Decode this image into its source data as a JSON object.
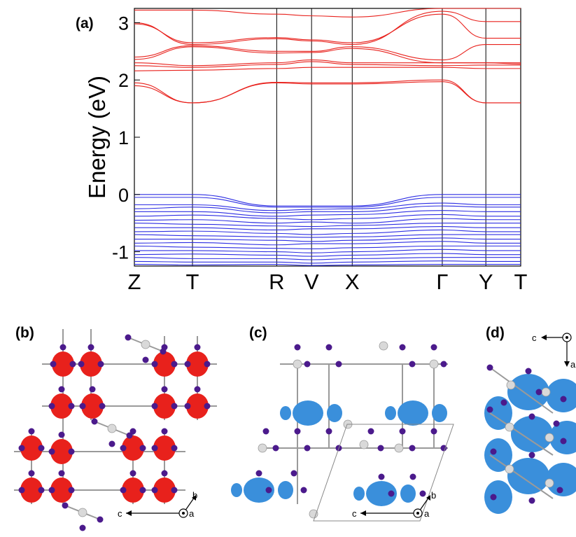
{
  "figure": {
    "panel_labels": [
      "(a)",
      "(b)",
      "(c)",
      "(d)"
    ]
  },
  "chart_data": {
    "type": "line",
    "title": "",
    "ylabel": "Energy (eV)",
    "xlabel": "",
    "ylim": [
      -1.25,
      3.25
    ],
    "yticks": [
      "3",
      "2",
      "1",
      "0",
      "-1"
    ],
    "k_labels": [
      "Z",
      "T",
      "R",
      "V",
      "X",
      "Γ",
      "Y",
      "T"
    ],
    "k_positions": [
      0.0,
      1.0,
      2.45,
      3.05,
      3.75,
      5.3,
      6.05,
      6.65
    ],
    "series": [
      {
        "values": [
          3.22,
          3.22,
          3.15,
          3.12,
          3.1,
          3.25,
          3.25,
          3.25
        ],
        "color": "#e8211c"
      },
      {
        "values": [
          3.0,
          2.62,
          2.72,
          2.68,
          2.62,
          3.2,
          3.02,
          3.02
        ],
        "color": "#e8211c"
      },
      {
        "values": [
          2.98,
          2.65,
          2.74,
          2.7,
          2.65,
          3.15,
          2.73,
          2.73
        ],
        "color": "#e8211c"
      },
      {
        "values": [
          2.4,
          2.6,
          2.5,
          2.5,
          2.58,
          2.35,
          2.62,
          2.62
        ],
        "color": "#e8211c"
      },
      {
        "values": [
          2.36,
          2.58,
          2.47,
          2.48,
          2.55,
          2.3,
          2.3,
          2.3
        ],
        "color": "#e8211c"
      },
      {
        "values": [
          2.3,
          2.25,
          2.3,
          2.35,
          2.3,
          2.3,
          2.3,
          2.28
        ],
        "color": "#e8211c"
      },
      {
        "values": [
          2.25,
          2.22,
          2.27,
          2.32,
          2.27,
          2.25,
          2.26,
          2.26
        ],
        "color": "#e8211c"
      },
      {
        "values": [
          2.16,
          2.17,
          2.2,
          2.22,
          2.22,
          2.22,
          2.2,
          2.2
        ],
        "color": "#e8211c"
      },
      {
        "values": [
          1.95,
          1.6,
          1.96,
          1.95,
          1.95,
          2.0,
          1.6,
          1.6
        ],
        "color": "#e8211c"
      },
      {
        "values": [
          1.9,
          1.6,
          1.95,
          1.93,
          1.93,
          1.97,
          1.6,
          1.6
        ],
        "color": "#e8211c"
      },
      {
        "values": [
          0.0,
          0.0,
          -0.2,
          -0.2,
          -0.2,
          0.0,
          0.0,
          0.0
        ],
        "color": "#2d2ee3"
      },
      {
        "values": [
          -0.05,
          -0.05,
          -0.22,
          -0.22,
          -0.22,
          -0.05,
          -0.05,
          -0.05
        ],
        "color": "#2d2ee3"
      },
      {
        "values": [
          -0.18,
          -0.18,
          -0.28,
          -0.26,
          -0.25,
          -0.15,
          -0.18,
          -0.18
        ],
        "color": "#2d2ee3"
      },
      {
        "values": [
          -0.25,
          -0.22,
          -0.32,
          -0.3,
          -0.3,
          -0.2,
          -0.22,
          -0.22
        ],
        "color": "#2d2ee3"
      },
      {
        "values": [
          -0.3,
          -0.3,
          -0.38,
          -0.36,
          -0.35,
          -0.28,
          -0.3,
          -0.3
        ],
        "color": "#2d2ee3"
      },
      {
        "values": [
          -0.38,
          -0.36,
          -0.42,
          -0.44,
          -0.42,
          -0.35,
          -0.38,
          -0.38
        ],
        "color": "#2d2ee3"
      },
      {
        "values": [
          -0.45,
          -0.44,
          -0.5,
          -0.48,
          -0.5,
          -0.42,
          -0.44,
          -0.44
        ],
        "color": "#2d2ee3"
      },
      {
        "values": [
          -0.5,
          -0.52,
          -0.55,
          -0.56,
          -0.54,
          -0.5,
          -0.5,
          -0.5
        ],
        "color": "#2d2ee3"
      },
      {
        "values": [
          -0.58,
          -0.58,
          -0.62,
          -0.6,
          -0.6,
          -0.56,
          -0.58,
          -0.58
        ],
        "color": "#2d2ee3"
      },
      {
        "values": [
          -0.65,
          -0.64,
          -0.68,
          -0.7,
          -0.68,
          -0.62,
          -0.65,
          -0.65
        ],
        "color": "#2d2ee3"
      },
      {
        "values": [
          -0.7,
          -0.72,
          -0.74,
          -0.75,
          -0.74,
          -0.7,
          -0.7,
          -0.7
        ],
        "color": "#2d2ee3"
      },
      {
        "values": [
          -0.78,
          -0.78,
          -0.8,
          -0.82,
          -0.8,
          -0.76,
          -0.78,
          -0.78
        ],
        "color": "#2d2ee3"
      },
      {
        "values": [
          -0.85,
          -0.84,
          -0.88,
          -0.86,
          -0.86,
          -0.82,
          -0.85,
          -0.85
        ],
        "color": "#2d2ee3"
      },
      {
        "values": [
          -0.9,
          -0.92,
          -0.94,
          -0.95,
          -0.93,
          -0.9,
          -0.9,
          -0.9
        ],
        "color": "#2d2ee3"
      },
      {
        "values": [
          -0.98,
          -0.98,
          -1.0,
          -1.02,
          -1.0,
          -0.96,
          -0.98,
          -0.98
        ],
        "color": "#2d2ee3"
      },
      {
        "values": [
          -1.05,
          -1.04,
          -1.06,
          -1.08,
          -1.06,
          -1.03,
          -1.05,
          -1.05
        ],
        "color": "#2d2ee3"
      },
      {
        "values": [
          -1.1,
          -1.12,
          -1.12,
          -1.14,
          -1.12,
          -1.1,
          -1.1,
          -1.1
        ],
        "color": "#2d2ee3"
      },
      {
        "values": [
          -1.17,
          -1.18,
          -1.18,
          -1.2,
          -1.18,
          -1.16,
          -1.17,
          -1.17
        ],
        "color": "#2d2ee3"
      },
      {
        "values": [
          -1.22,
          -1.23,
          -1.22,
          -1.24,
          -1.23,
          -1.22,
          -1.22,
          -1.22
        ],
        "color": "#2d2ee3"
      }
    ],
    "grid": false,
    "legend": "none"
  },
  "structures": {
    "b": {
      "isosurface_color": "#e8211c",
      "axis_labels": [
        "b",
        "c",
        "a"
      ]
    },
    "c": {
      "isosurface_color": "#3a8fdb",
      "axis_labels": [
        "b",
        "c",
        "a"
      ]
    },
    "d": {
      "isosurface_color": "#3a8fdb",
      "axis_labels": [
        "c",
        "a"
      ]
    },
    "iodine_color": "#4b1a8c",
    "metal_color": "#d9d9d9"
  }
}
